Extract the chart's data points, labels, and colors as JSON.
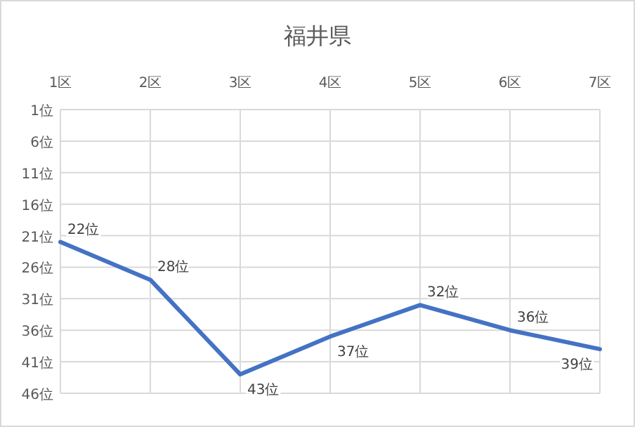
{
  "chart_data": {
    "type": "line",
    "title": "福井県",
    "categories": [
      "1区",
      "2区",
      "3区",
      "4区",
      "5区",
      "6区",
      "7区"
    ],
    "series": [
      {
        "color": "#4472c4",
        "values": [
          22,
          28,
          43,
          37,
          32,
          36,
          39
        ],
        "value_labels": [
          "22位",
          "28位",
          "43位",
          "37位",
          "32位",
          "36位",
          "39位"
        ]
      }
    ],
    "ylim": [
      46,
      1
    ],
    "yticks": [
      {
        "value": 1,
        "label": "1位"
      },
      {
        "value": 6,
        "label": "6位"
      },
      {
        "value": 11,
        "label": "11位"
      },
      {
        "value": 16,
        "label": "16位"
      },
      {
        "value": 21,
        "label": "21位"
      },
      {
        "value": 26,
        "label": "26位"
      },
      {
        "value": 31,
        "label": "31位"
      },
      {
        "value": 36,
        "label": "36位"
      },
      {
        "value": 41,
        "label": "41位"
      },
      {
        "value": 46,
        "label": "46位"
      }
    ],
    "grid": true,
    "marker": "none",
    "line_style": "solid"
  }
}
